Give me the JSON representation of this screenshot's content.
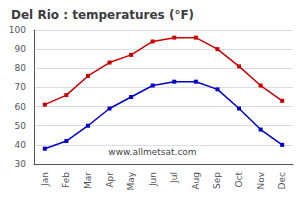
{
  "chart_data": {
    "type": "line",
    "title": "Del Rio : temperatures (°F)",
    "categories": [
      "Jan",
      "Feb",
      "Mar",
      "Apr",
      "May",
      "Jun",
      "Jul",
      "Aug",
      "Sep",
      "Oct",
      "Nov",
      "Dec"
    ],
    "series": [
      {
        "color": "#cc0000",
        "marker": "square",
        "values": [
          61,
          66,
          76,
          83,
          87,
          94,
          96,
          96,
          90,
          81,
          71,
          63
        ]
      },
      {
        "color": "#0000cc",
        "marker": "square",
        "values": [
          38,
          42,
          50,
          59,
          65,
          71,
          73,
          73,
          69,
          59,
          48,
          40
        ]
      }
    ],
    "ylim": [
      30,
      100
    ],
    "yticks": [
      30,
      40,
      50,
      60,
      70,
      80,
      90,
      100
    ],
    "grid": true,
    "annotations": [
      "www.allmetsat.com"
    ]
  }
}
